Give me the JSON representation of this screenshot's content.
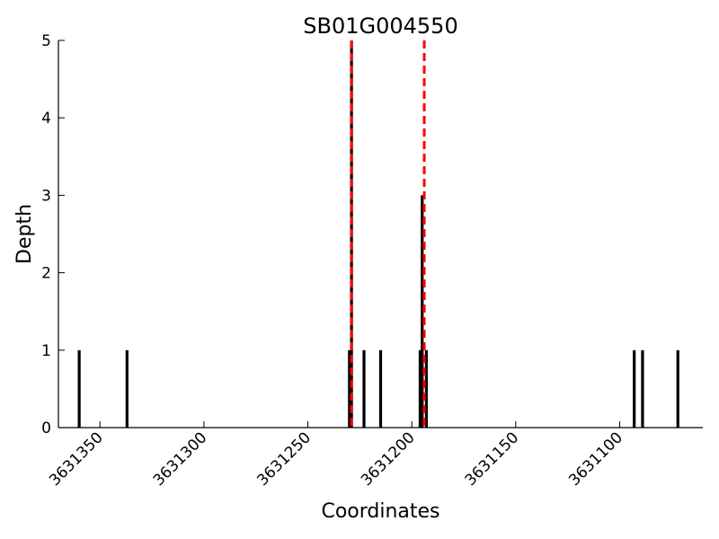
{
  "chart_data": {
    "type": "bar",
    "title": "SB01G004550",
    "xlabel": "Coordinates",
    "ylabel": "Depth",
    "xlim": [
      3631370,
      3631060
    ],
    "ylim": [
      0,
      5
    ],
    "x_reversed": true,
    "grid": false,
    "xticks": [
      3631350,
      3631300,
      3631250,
      3631200,
      3631150,
      3631100
    ],
    "xtick_labels": [
      "3631350",
      "3631300",
      "3631250",
      "3631200",
      "3631150",
      "3631100"
    ],
    "yticks": [
      0,
      1,
      2,
      3,
      4,
      5
    ],
    "ytick_labels": [
      "0",
      "1",
      "2",
      "3",
      "4",
      "5"
    ],
    "bar_color": "#000000",
    "bars": [
      {
        "x": 3631360,
        "value": 1
      },
      {
        "x": 3631337,
        "value": 1
      },
      {
        "x": 3631230,
        "value": 1
      },
      {
        "x": 3631229,
        "value": 5
      },
      {
        "x": 3631223,
        "value": 1
      },
      {
        "x": 3631215,
        "value": 1
      },
      {
        "x": 3631196,
        "value": 1
      },
      {
        "x": 3631195,
        "value": 3
      },
      {
        "x": 3631193,
        "value": 1
      },
      {
        "x": 3631093,
        "value": 1
      },
      {
        "x": 3631089,
        "value": 1
      },
      {
        "x": 3631072,
        "value": 1
      }
    ],
    "markers": {
      "color": "#ff0000",
      "style": "dashed",
      "x": [
        3631229,
        3631194
      ]
    }
  }
}
